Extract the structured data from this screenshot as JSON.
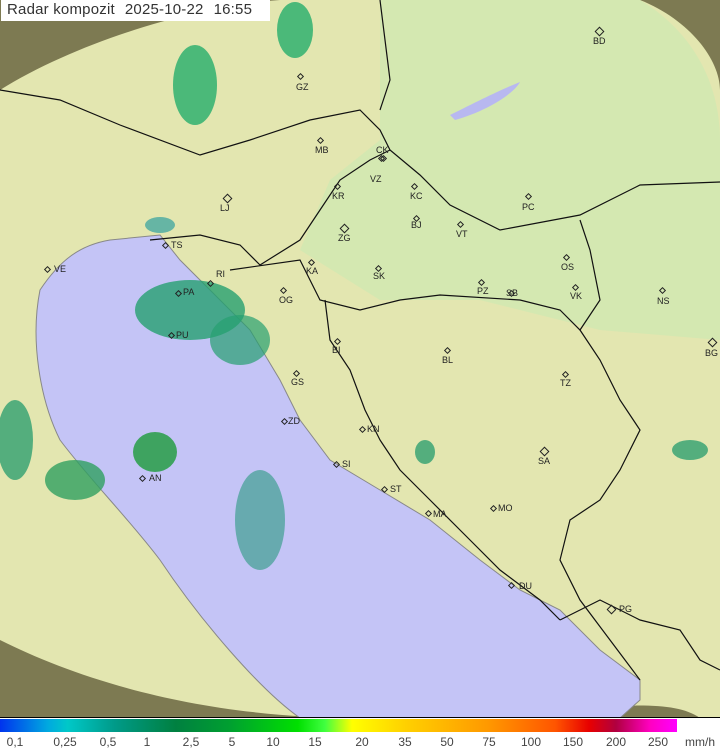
{
  "header": {
    "title": "Radar kompozit",
    "date": "2025-10-22",
    "time": "16:55"
  },
  "cities": [
    "GZ",
    "MB",
    "CK",
    "VZ",
    "KR",
    "KC",
    "LJ",
    "ZG",
    "BJ",
    "VT",
    "PC",
    "BD",
    "KA",
    "SK",
    "RI",
    "PA",
    "OG",
    "PZ",
    "SB",
    "OS",
    "VK",
    "NS",
    "VE",
    "TS",
    "PU",
    "BI",
    "BL",
    "BG",
    "GS",
    "TZ",
    "ZD",
    "KN",
    "SI",
    "SA",
    "AN",
    "ST",
    "MA",
    "MO",
    "DU",
    "PG"
  ],
  "legend": {
    "values": [
      "0,1",
      "0,25",
      "0,5",
      "1",
      "2,5",
      "5",
      "10",
      "15",
      "20",
      "35",
      "50",
      "75",
      "100",
      "150",
      "200",
      "250"
    ],
    "unit": "mm/h"
  },
  "colors": {
    "sea": "#c4c4f6",
    "land": "#e2eab8",
    "outside": "#8a8a5a",
    "echo": "#20a070"
  }
}
